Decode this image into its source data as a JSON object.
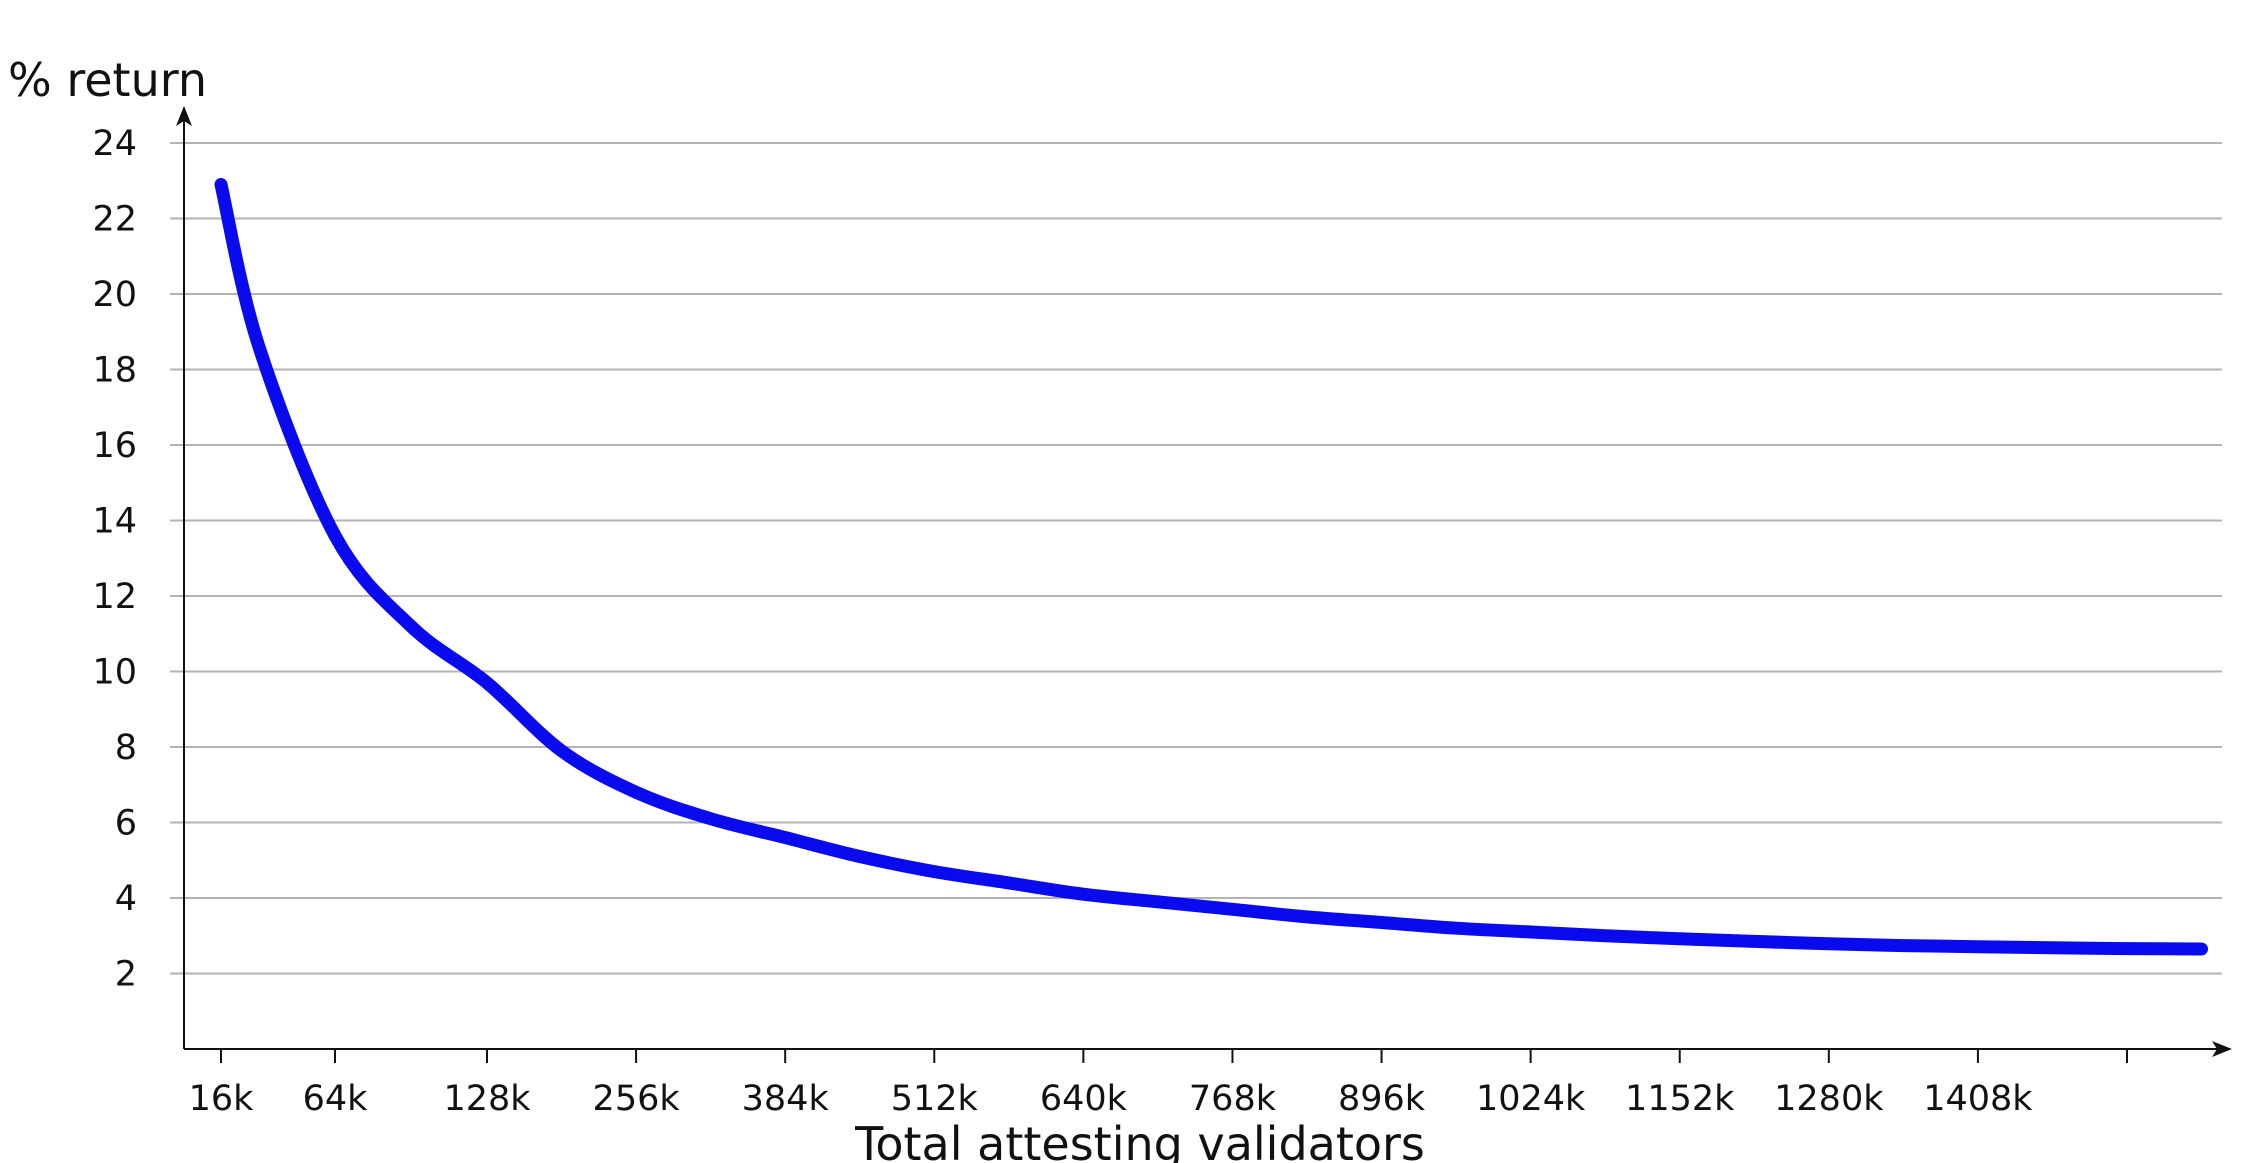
{
  "chart_data": {
    "type": "line",
    "title": "",
    "xlabel": "Total attesting validators",
    "ylabel": "% return",
    "x_ticks": [
      {
        "value": 16384,
        "label": "16k"
      },
      {
        "value": 65536,
        "label": "64k"
      },
      {
        "value": 131072,
        "label": "128k"
      },
      {
        "value": 262144,
        "label": "256k"
      },
      {
        "value": 393216,
        "label": "384k"
      },
      {
        "value": 524288,
        "label": "512k"
      },
      {
        "value": 655360,
        "label": "640k"
      },
      {
        "value": 786432,
        "label": "768k"
      },
      {
        "value": 917504,
        "label": "896k"
      },
      {
        "value": 1048576,
        "label": "1024k"
      },
      {
        "value": 1179648,
        "label": "1152k"
      },
      {
        "value": 1310720,
        "label": "1280k"
      },
      {
        "value": 1441792,
        "label": "1408k"
      },
      {
        "value": 1572864,
        "label": ""
      }
    ],
    "y_ticks": [
      2,
      4,
      6,
      8,
      10,
      12,
      14,
      16,
      18,
      20,
      22,
      24
    ],
    "ylim": [
      0,
      24
    ],
    "grid": true,
    "legend": "none",
    "colors": {
      "line": "#0a0aef",
      "grid": "#b3b3b3",
      "axis": "#111111"
    },
    "series": [
      {
        "x": [
          16384,
          32768,
          65536,
          98304,
          131072,
          196608,
          262144,
          327680,
          393216,
          458752,
          524288,
          589824,
          655360,
          720896,
          786432,
          851968,
          917504,
          983040,
          1048576,
          1114112,
          1179648,
          1245184,
          1310720,
          1376256,
          1441792,
          1507328,
          1572864,
          1638400
        ],
        "y": [
          22.9,
          18.6,
          13.6,
          11.2,
          9.7,
          7.9,
          6.8,
          6.1,
          5.6,
          5.1,
          4.7,
          4.4,
          4.1,
          3.9,
          3.7,
          3.5,
          3.35,
          3.2,
          3.1,
          3.0,
          2.92,
          2.85,
          2.79,
          2.74,
          2.71,
          2.68,
          2.66,
          2.65
        ]
      }
    ]
  }
}
